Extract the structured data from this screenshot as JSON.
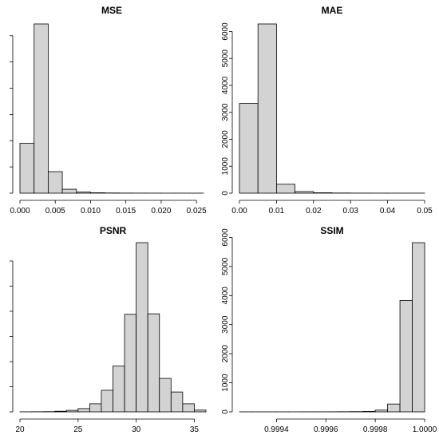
{
  "chart_data": [
    {
      "type": "bar",
      "title": "MSE",
      "xlabel": "",
      "ylabel": "",
      "bin_edges": [
        0,
        0.002,
        0.004,
        0.006,
        0.008,
        0.01,
        0.012,
        0.014,
        0.016,
        0.018,
        0.02,
        0.022,
        0.024,
        0.026
      ],
      "values": [
        1900,
        6450,
        820,
        150,
        40,
        15,
        8,
        4,
        3,
        2,
        1,
        1,
        1
      ],
      "xlim": [
        0,
        0.026
      ],
      "ylim": [
        0,
        6450
      ],
      "xticks": [
        {
          "value": 0.0,
          "label": "0.000"
        },
        {
          "value": 0.005,
          "label": "0.005"
        },
        {
          "value": 0.01,
          "label": "0.010"
        },
        {
          "value": 0.015,
          "label": "0.015"
        },
        {
          "value": 0.02,
          "label": "0.020"
        },
        {
          "value": 0.025,
          "label": "0.025"
        }
      ],
      "yticks": [
        {
          "value": 0,
          "label": ""
        },
        {
          "value": 1000,
          "label": ""
        },
        {
          "value": 2000,
          "label": ""
        },
        {
          "value": 3000,
          "label": ""
        },
        {
          "value": 4000,
          "label": ""
        },
        {
          "value": 5000,
          "label": ""
        },
        {
          "value": 6000,
          "label": ""
        }
      ]
    },
    {
      "type": "bar",
      "title": "MAE",
      "xlabel": "",
      "ylabel": "",
      "bin_edges": [
        0,
        0.005,
        0.01,
        0.015,
        0.02,
        0.025,
        0.03,
        0.035,
        0.04,
        0.045,
        0.05
      ],
      "values": [
        3330,
        6280,
        330,
        60,
        15,
        6,
        3,
        2,
        1,
        1
      ],
      "xlim": [
        0,
        0.05
      ],
      "ylim": [
        0,
        6280
      ],
      "xticks": [
        {
          "value": 0.0,
          "label": "0.00"
        },
        {
          "value": 0.01,
          "label": "0.01"
        },
        {
          "value": 0.02,
          "label": "0.02"
        },
        {
          "value": 0.03,
          "label": "0.03"
        },
        {
          "value": 0.04,
          "label": "0.04"
        },
        {
          "value": 0.05,
          "label": "0.05"
        }
      ],
      "yticks": [
        {
          "value": 0,
          "label": "0"
        },
        {
          "value": 1000,
          "label": "1000"
        },
        {
          "value": 2000,
          "label": "2000"
        },
        {
          "value": 3000,
          "label": "3000"
        },
        {
          "value": 4000,
          "label": "4000"
        },
        {
          "value": 5000,
          "label": "5000"
        },
        {
          "value": 6000,
          "label": "6000"
        }
      ]
    },
    {
      "type": "bar",
      "title": "PSNR",
      "xlabel": "",
      "ylabel": "",
      "bin_edges": [
        20,
        21,
        22,
        23,
        24,
        25,
        26,
        27,
        28,
        29,
        30,
        31,
        32,
        33,
        34,
        35,
        36
      ],
      "values": [
        2,
        4,
        8,
        25,
        60,
        130,
        320,
        860,
        1820,
        3880,
        6730,
        3900,
        1330,
        790,
        320,
        70
      ],
      "xlim": [
        20,
        36
      ],
      "ylim": [
        0,
        6730
      ],
      "xticks": [
        {
          "value": 20,
          "label": "20"
        },
        {
          "value": 25,
          "label": "25"
        },
        {
          "value": 30,
          "label": "30"
        },
        {
          "value": 35,
          "label": "35"
        }
      ],
      "yticks": [
        {
          "value": 0,
          "label": ""
        },
        {
          "value": 1000,
          "label": ""
        },
        {
          "value": 2000,
          "label": ""
        },
        {
          "value": 3000,
          "label": ""
        },
        {
          "value": 4000,
          "label": ""
        },
        {
          "value": 5000,
          "label": ""
        },
        {
          "value": 6000,
          "label": ""
        }
      ]
    },
    {
      "type": "bar",
      "title": "SSIM",
      "xlabel": "",
      "ylabel": "",
      "bin_edges": [
        0.99925,
        0.9993,
        0.99935,
        0.9994,
        0.99945,
        0.9995,
        0.99955,
        0.9996,
        0.99965,
        0.9997,
        0.99975,
        0.9998,
        0.99985,
        0.9999,
        0.99995,
        1.0
      ],
      "values": [
        1,
        1,
        1,
        1,
        1,
        2,
        2,
        3,
        5,
        8,
        15,
        60,
        270,
        3830,
        5820
      ],
      "xlim": [
        0.99925,
        1.0
      ],
      "ylim": [
        0,
        5820
      ],
      "xticks": [
        {
          "value": 0.9994,
          "label": "0.9994"
        },
        {
          "value": 0.9996,
          "label": "0.9996"
        },
        {
          "value": 0.9998,
          "label": "0.9998"
        },
        {
          "value": 1.0,
          "label": "1.0000"
        }
      ],
      "yticks": [
        {
          "value": 0,
          "label": "0"
        },
        {
          "value": 1000,
          "label": "1000"
        },
        {
          "value": 2000,
          "label": "2000"
        },
        {
          "value": 3000,
          "label": "3000"
        },
        {
          "value": 4000,
          "label": "4000"
        },
        {
          "value": 5000,
          "label": "5000"
        },
        {
          "value": 6000,
          "label": "6000"
        }
      ]
    }
  ]
}
